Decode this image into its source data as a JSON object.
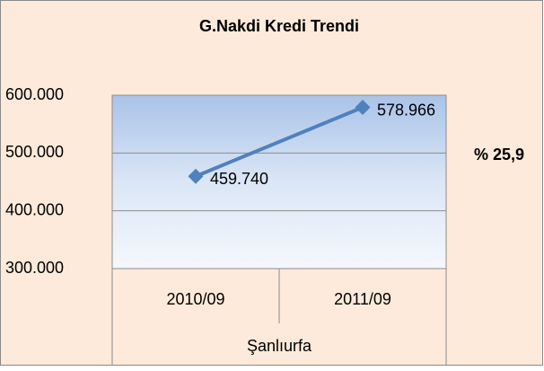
{
  "chart_data": {
    "type": "line",
    "title": "G.Nakdi Kredi Trendi",
    "categories": [
      "2010/09",
      "2011/09"
    ],
    "series": [
      {
        "name": "Şanlıurfa",
        "color": "#4f81bd",
        "values": [
          459740,
          578966
        ],
        "value_labels": [
          "459.740",
          "578.966"
        ]
      }
    ],
    "group_label": "Şanlıurfa",
    "annotation": "% 25,9",
    "ylim": [
      300000,
      600000
    ],
    "yticks": [
      {
        "value": 300000,
        "label": "300.000"
      },
      {
        "value": 400000,
        "label": "400.000"
      },
      {
        "value": 500000,
        "label": "500.000"
      },
      {
        "value": 600000,
        "label": "600.000"
      }
    ],
    "grid": true
  }
}
